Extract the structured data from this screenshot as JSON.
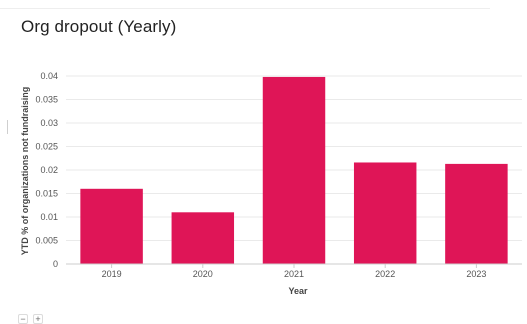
{
  "header": {
    "title": "Org dropout (Yearly)"
  },
  "controls": {
    "zoom_out_label": "−",
    "zoom_in_label": "+"
  },
  "colors": {
    "bar": "#df1557",
    "grid": "#eaeaea",
    "axis": "#cccccc",
    "text": "#555555"
  },
  "chart_data": {
    "type": "bar",
    "title": "Org dropout (Yearly)",
    "xlabel": "Year",
    "ylabel": "YTD % of organizations not fundraising",
    "categories": [
      "2019",
      "2020",
      "2021",
      "2022",
      "2023"
    ],
    "values": [
      0.016,
      0.011,
      0.0398,
      0.0216,
      0.0213
    ],
    "ylim": [
      0,
      0.04
    ],
    "yticks": [
      0,
      0.005,
      0.01,
      0.015,
      0.02,
      0.025,
      0.03,
      0.035,
      0.04
    ],
    "grid": true,
    "legend": false
  }
}
